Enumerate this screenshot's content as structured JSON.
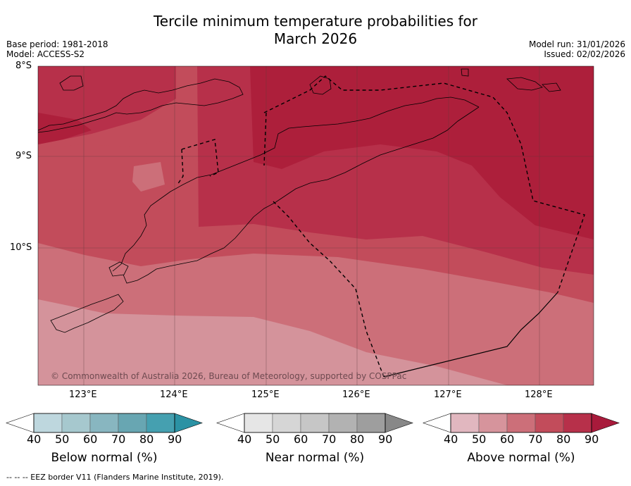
{
  "title_line1": "Tercile minimum temperature probabilities for",
  "title_line2": "March 2026",
  "base_period": "Base period: 1981-2018",
  "model": "Model: ACCESS-S2",
  "model_run": "Model run: 31/01/2026",
  "issued": "Issued: 02/02/2026",
  "copyright": "© Commonwealth of Australia 2026, Bureau of Meteorology, supported by COSPPac",
  "footer_note": "-- -- -- EEZ border V11 (Flanders Marine Institute, 2019).",
  "chart_data": {
    "type": "heatmap",
    "lat_labels": [
      "8°S",
      "9°S",
      "10°S"
    ],
    "lon_labels": [
      "123°E",
      "124°E",
      "125°E",
      "126°E",
      "127°E",
      "128°E"
    ],
    "lat_range": [
      -11.5,
      -8
    ],
    "lon_range": [
      122.5,
      128.6
    ],
    "dominant_category": "Above normal",
    "gradient_summary": "Above-normal probability highest (80–90%) in north and east near Timor, decreasing to 40–60% toward the south-west",
    "colorbars": [
      {
        "title": "Below normal (%)",
        "ticks": [
          "40",
          "50",
          "60",
          "70",
          "80",
          "90"
        ],
        "colors": [
          "#ffffff",
          "#bed7de",
          "#a6c8ce",
          "#88b6c0",
          "#68a6b2",
          "#45a0b0",
          "#2b92a4"
        ]
      },
      {
        "title": "Near normal (%)",
        "ticks": [
          "40",
          "50",
          "60",
          "70",
          "80",
          "90"
        ],
        "colors": [
          "#ffffff",
          "#e6e6e6",
          "#d6d6d6",
          "#c6c6c6",
          "#b2b2b2",
          "#9e9e9e",
          "#888888"
        ]
      },
      {
        "title": "Above normal (%)",
        "ticks": [
          "40",
          "50",
          "60",
          "70",
          "80",
          "90"
        ],
        "colors": [
          "#ffffff",
          "#e1b7bf",
          "#d6949c",
          "#cc6f79",
          "#c24c5b",
          "#b7304a",
          "#a81a3b"
        ]
      }
    ]
  }
}
